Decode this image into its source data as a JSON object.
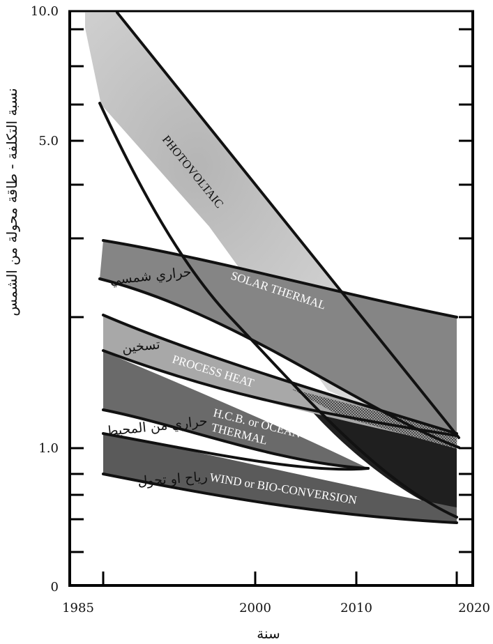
{
  "chart_data": {
    "type": "area",
    "title": "",
    "xlabel": "سنة",
    "ylabel": "نسبة التكلفة - طاقة محولة من الشمس",
    "x_ticks": [
      {
        "value": 1985,
        "label": "1985"
      },
      {
        "value": 2000,
        "label": "2000"
      },
      {
        "value": 2010,
        "label": "2010"
      },
      {
        "value": 2020,
        "label": "2020"
      }
    ],
    "y_ticks": [
      {
        "value": 0,
        "label": "0"
      },
      {
        "value": 1.0,
        "label": "1.0"
      },
      {
        "value": 5.0,
        "label": "5.0"
      },
      {
        "value": 10.0,
        "label": "10.0"
      }
    ],
    "xlim": [
      1985,
      2020
    ],
    "ylim": [
      0,
      10
    ],
    "y_scale": "log",
    "series": [
      {
        "name": "PHOTOVOLTAIC",
        "name_ar": "",
        "color": "#c8c8c8",
        "upper": [
          [
            1989,
            10.0
          ],
          [
            2018.5,
            1.05
          ]
        ],
        "lower": [
          [
            1987.5,
            6.3
          ],
          [
            1997,
            2.9
          ],
          [
            2018.5,
            1.0
          ]
        ]
      },
      {
        "name": "SOLAR THERMAL",
        "name_ar": "حراري شمسي",
        "color": "#8a8a8a",
        "upper": [
          [
            1988,
            3.05
          ],
          [
            2005,
            2.28
          ],
          [
            2018.5,
            2.0
          ]
        ],
        "lower": [
          [
            1987.5,
            2.55
          ],
          [
            1998,
            2.0
          ],
          [
            2018.5,
            1.0
          ]
        ]
      },
      {
        "name": "PROCESS HEAT",
        "name_ar": "تسخين",
        "color": "#a9a9a9",
        "upper": [
          [
            1988,
            2.0
          ],
          [
            2002,
            1.38
          ],
          [
            2018.5,
            1.0
          ]
        ],
        "lower": [
          [
            1988,
            1.6
          ],
          [
            2002,
            1.18
          ],
          [
            2018.5,
            0.98
          ]
        ]
      },
      {
        "name": "H.C.B. or OCEAN THERMAL",
        "name_ar": "حراري من المحيط",
        "color": "#6f6f6f",
        "upper": [
          [
            1988,
            1.56
          ],
          [
            2006,
            1.09
          ],
          [
            2012,
            0.91
          ]
        ],
        "lower": [
          [
            1988,
            1.12
          ],
          [
            2006,
            0.92
          ],
          [
            2012,
            0.89
          ]
        ]
      },
      {
        "name": "WIND or BIO-CONVERSION",
        "name_ar": "رياح او تحول",
        "color": "#5e5e5e",
        "upper": [
          [
            1988,
            1.02
          ],
          [
            2003,
            0.91
          ],
          [
            2018.5,
            0.78
          ]
        ],
        "lower": [
          [
            1988,
            0.85
          ],
          [
            2003,
            0.76
          ],
          [
            2018.5,
            0.72
          ]
        ]
      }
    ],
    "annotations": [
      "PHOTOVOLTAIC",
      "SOLAR THERMAL",
      "PROCESS HEAT",
      "H.C.B. or OCEAN",
      "THERMAL",
      "WIND or BIO-CONVERSION"
    ],
    "grid": false,
    "legend": "none"
  }
}
